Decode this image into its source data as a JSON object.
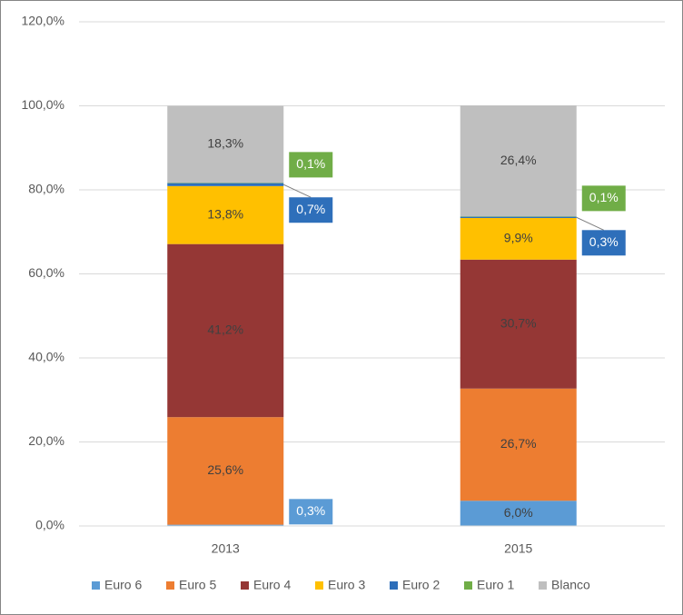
{
  "chart_data": {
    "type": "stacked-bar",
    "categories": [
      "2013",
      "2015"
    ],
    "series": [
      {
        "name": "Euro 6",
        "color": "#5b9bd5",
        "values": [
          0.3,
          6.0
        ],
        "value_labels": [
          "0,3%",
          "6,0%"
        ]
      },
      {
        "name": "Euro 5",
        "color": "#ed7d31",
        "values": [
          25.6,
          26.7
        ],
        "value_labels": [
          "25,6%",
          "26,7%"
        ]
      },
      {
        "name": "Euro 4",
        "color": "#953735",
        "values": [
          41.2,
          30.7
        ],
        "value_labels": [
          "41,2%",
          "30,7%"
        ]
      },
      {
        "name": "Euro 3",
        "color": "#ffc000",
        "values": [
          13.8,
          9.9
        ],
        "value_labels": [
          "13,8%",
          "9,9%"
        ]
      },
      {
        "name": "Euro 2",
        "color": "#2e6fba",
        "values": [
          0.7,
          0.3
        ],
        "value_labels": [
          "0,7%",
          "0,3%"
        ]
      },
      {
        "name": "Euro 1",
        "color": "#70ad47",
        "values": [
          0.1,
          0.1
        ],
        "value_labels": [
          "0,1%",
          "0,1%"
        ]
      },
      {
        "name": "Blanco",
        "color": "#bfbfbf",
        "values": [
          18.3,
          26.4
        ],
        "value_labels": [
          "18,3%",
          "26,4%"
        ]
      }
    ],
    "ylim": [
      0,
      120
    ],
    "yticks": [
      {
        "value": 0,
        "label": "0,0%"
      },
      {
        "value": 20,
        "label": "20,0%"
      },
      {
        "value": 40,
        "label": "40,0%"
      },
      {
        "value": 60,
        "label": "60,0%"
      },
      {
        "value": 80,
        "label": "80,0%"
      },
      {
        "value": 100,
        "label": "100,0%"
      },
      {
        "value": 120,
        "label": "120,0%"
      }
    ],
    "grid": true,
    "legend": "bottom"
  }
}
